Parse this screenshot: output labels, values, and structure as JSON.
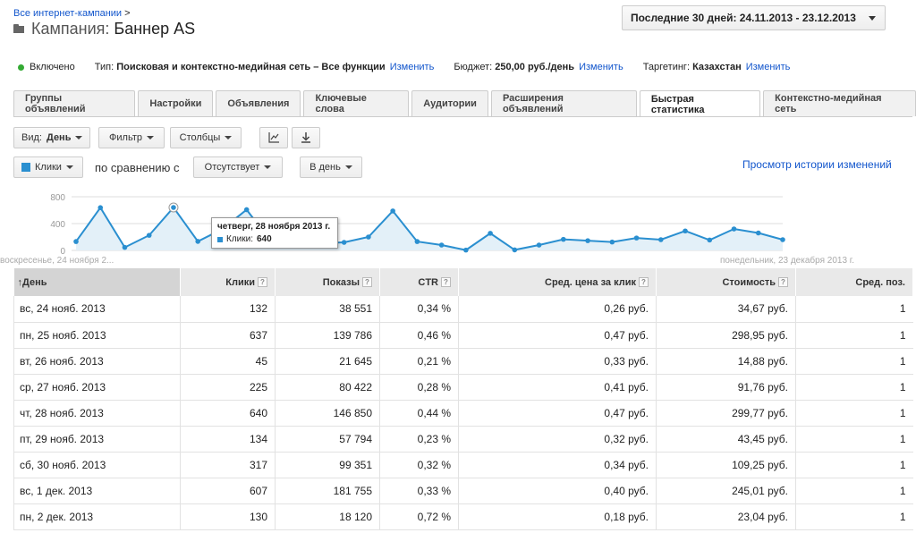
{
  "breadcrumb": {
    "link": "Все интернет-кампании",
    "sep": ">"
  },
  "title": {
    "label": "Кампания:",
    "name": "Баннер AS"
  },
  "date_range": "Последние 30 дней: 24.11.2013 - 23.12.2013",
  "status": {
    "state": "Включено",
    "type_label": "Тип:",
    "type_value": "Поисковая и контекстно-медийная сеть – Все функции",
    "budget_label": "Бюджет:",
    "budget_value": "250,00 руб./день",
    "targeting_label": "Таргетинг:",
    "targeting_value": "Казахстан",
    "edit_link": "Изменить"
  },
  "tabs": [
    "Группы объявлений",
    "Настройки",
    "Объявления",
    "Ключевые слова",
    "Аудитории",
    "Расширения объявлений",
    "Быстрая статистика",
    "Контекстно-медийная сеть"
  ],
  "toolbar": {
    "view_label": "Вид:",
    "view_value": "День",
    "filter": "Фильтр",
    "columns": "Столбцы"
  },
  "chart_controls": {
    "metric": "Клики",
    "compare_label": "по сравнению с",
    "compare_value": "Отсутствует",
    "period": "В день",
    "history_link": "Просмотр истории изменений"
  },
  "chart_data": {
    "type": "line",
    "series": [
      {
        "name": "Клики",
        "values": [
          132,
          637,
          45,
          225,
          640,
          134,
          317,
          607,
          130,
          325,
          110,
          120,
          200,
          588,
          132,
          80,
          5,
          255,
          8,
          80,
          165,
          145,
          125,
          185,
          160,
          290,
          155,
          320,
          260,
          160
        ]
      }
    ],
    "ylim": [
      0,
      800
    ],
    "yticks": [
      "800",
      "400",
      "0"
    ],
    "x_start_label": "воскресенье, 24 ноября 2...",
    "x_end_label": "понедельник, 23 декабря 2013 г.",
    "highlight_index": 4,
    "color": "#2a8fd0"
  },
  "tooltip": {
    "title": "четверг, 28 ноября 2013 г.",
    "series": "Клики:",
    "value": "640"
  },
  "table": {
    "columns": [
      "День",
      "Клики",
      "Показы",
      "CTR",
      "Сред. цена за клик",
      "Стоимость",
      "Сред. поз."
    ],
    "help": "?",
    "sort_arrow": "↑",
    "rows": [
      [
        "вс, 24 нояб. 2013",
        "132",
        "38 551",
        "0,34 %",
        "0,26 руб.",
        "34,67 руб.",
        "1"
      ],
      [
        "пн, 25 нояб. 2013",
        "637",
        "139 786",
        "0,46 %",
        "0,47 руб.",
        "298,95 руб.",
        "1"
      ],
      [
        "вт, 26 нояб. 2013",
        "45",
        "21 645",
        "0,21 %",
        "0,33 руб.",
        "14,88 руб.",
        "1"
      ],
      [
        "ср, 27 нояб. 2013",
        "225",
        "80 422",
        "0,28 %",
        "0,41 руб.",
        "91,76 руб.",
        "1"
      ],
      [
        "чт, 28 нояб. 2013",
        "640",
        "146 850",
        "0,44 %",
        "0,47 руб.",
        "299,77 руб.",
        "1"
      ],
      [
        "пт, 29 нояб. 2013",
        "134",
        "57 794",
        "0,23 %",
        "0,32 руб.",
        "43,45 руб.",
        "1"
      ],
      [
        "сб, 30 нояб. 2013",
        "317",
        "99 351",
        "0,32 %",
        "0,34 руб.",
        "109,25 руб.",
        "1"
      ],
      [
        "вс, 1 дек. 2013",
        "607",
        "181 755",
        "0,33 %",
        "0,40 руб.",
        "245,01 руб.",
        "1"
      ],
      [
        "пн, 2 дек. 2013",
        "130",
        "18 120",
        "0,72 %",
        "0,18 руб.",
        "23,04 руб.",
        "1"
      ]
    ]
  }
}
